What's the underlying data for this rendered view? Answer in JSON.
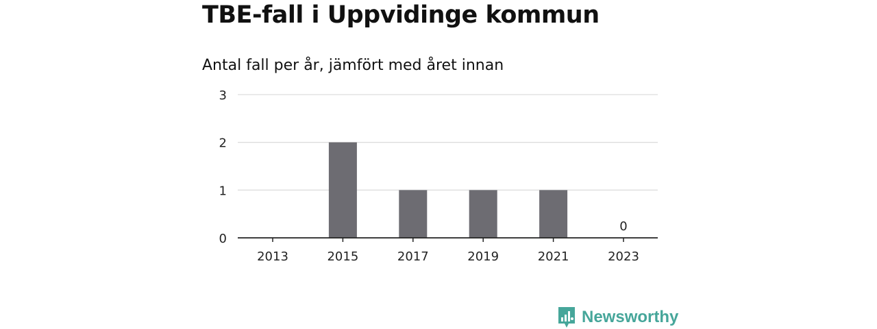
{
  "title": "TBE-fall i Uppvidinge kommun",
  "subtitle": "Antal fall per år, jämfört med året innan",
  "brand": {
    "name": "Newsworthy",
    "logo_icon": "newsworthy-logo-icon",
    "color": "#46a69a"
  },
  "chart_data": {
    "type": "bar",
    "categories": [
      "2013",
      "2014",
      "2015",
      "2016",
      "2017",
      "2018",
      "2019",
      "2020",
      "2021",
      "2022",
      "2023"
    ],
    "values": [
      0,
      0,
      2,
      0,
      1,
      0,
      1,
      0,
      1,
      0,
      0
    ],
    "x_tick_labels": [
      "2013",
      "2015",
      "2017",
      "2019",
      "2021",
      "2023"
    ],
    "y_ticks": [
      0,
      1,
      2,
      3
    ],
    "ylim": [
      0,
      3
    ],
    "annotations": [
      {
        "category": "2023",
        "text": "0"
      }
    ],
    "bar_color": "#6d6c72",
    "grid": true,
    "legend": "none"
  }
}
